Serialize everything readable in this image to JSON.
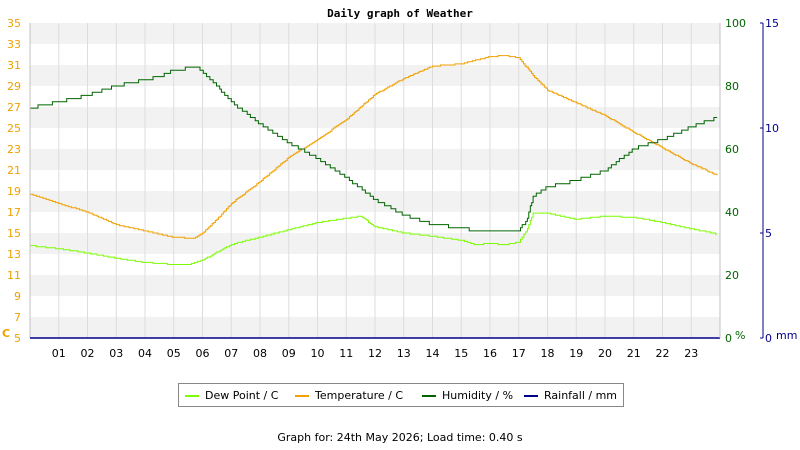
{
  "chart_data": {
    "type": "line",
    "title": "Daily graph of Weather",
    "x_ticks": [
      "01",
      "02",
      "03",
      "04",
      "05",
      "06",
      "07",
      "08",
      "09",
      "10",
      "11",
      "12",
      "13",
      "14",
      "15",
      "16",
      "17",
      "18",
      "19",
      "20",
      "21",
      "22",
      "23"
    ],
    "xlim": [
      0,
      24
    ],
    "axes": {
      "left": {
        "label": "C",
        "ylim": [
          5,
          35
        ],
        "ticks": [
          5,
          7,
          9,
          11,
          13,
          15,
          17,
          19,
          21,
          23,
          25,
          27,
          29,
          31,
          33,
          35
        ],
        "color": "#f0a000"
      },
      "right1": {
        "label": "%",
        "ylim": [
          0,
          100
        ],
        "ticks": [
          0,
          20,
          40,
          60,
          80,
          100
        ],
        "color": "#006400"
      },
      "right2": {
        "label": "mm",
        "ylim": [
          0,
          15
        ],
        "ticks": [
          0,
          5,
          10,
          15
        ],
        "color": "#00008b"
      }
    },
    "grid": true,
    "legend_position": "bottom",
    "series": [
      {
        "name": "Dew Point / C",
        "axis": "left",
        "color": "#7cfc00",
        "x": [
          0,
          1,
          2,
          3,
          4,
          5,
          5.5,
          6,
          7,
          8,
          9,
          10,
          11,
          11.5,
          12,
          13,
          14,
          15,
          15.5,
          16,
          16.5,
          17,
          17.3,
          17.5,
          18,
          19,
          20,
          21,
          22,
          23,
          23.9
        ],
        "y": [
          13.8,
          13.5,
          13.1,
          12.6,
          12.2,
          12.0,
          12.0,
          12.4,
          13.9,
          14.6,
          15.3,
          16.0,
          16.4,
          16.6,
          15.6,
          15.0,
          14.7,
          14.3,
          13.9,
          14.0,
          13.9,
          14.1,
          15.4,
          16.9,
          16.9,
          16.3,
          16.6,
          16.5,
          16.0,
          15.4,
          14.9
        ]
      },
      {
        "name": "Temperature / C",
        "axis": "left",
        "color": "#f0a000",
        "x": [
          0,
          1,
          2,
          3,
          4,
          5,
          5.7,
          6,
          6.5,
          7,
          8,
          9,
          10,
          11,
          12,
          13,
          14,
          15,
          16,
          16.5,
          17,
          17.5,
          18,
          19,
          20,
          21,
          22,
          23,
          23.9
        ],
        "y": [
          18.7,
          17.8,
          17.0,
          15.8,
          15.2,
          14.6,
          14.5,
          15.0,
          16.3,
          17.8,
          19.9,
          22.2,
          23.9,
          25.8,
          28.2,
          29.7,
          30.9,
          31.1,
          31.8,
          31.9,
          31.7,
          30.0,
          28.6,
          27.4,
          26.2,
          24.6,
          23.1,
          21.6,
          20.5
        ]
      },
      {
        "name": "Humidity / %",
        "axis": "right1",
        "color": "#006400",
        "x": [
          0,
          1,
          2,
          3,
          4,
          4.5,
          5,
          5.8,
          6.2,
          7,
          8,
          9,
          10,
          11,
          12,
          13,
          14,
          15,
          15.5,
          16,
          16.5,
          17,
          17.3,
          17.5,
          18,
          19,
          20,
          21,
          22,
          23,
          23.9
        ],
        "y": [
          73,
          75,
          77,
          80,
          82,
          83,
          85,
          86,
          83,
          75,
          68,
          62,
          57,
          51,
          44,
          39,
          36,
          35,
          34,
          34,
          34,
          34,
          38,
          45,
          48,
          50,
          53,
          60,
          63,
          67,
          70
        ]
      },
      {
        "name": "Rainfall / mm",
        "axis": "right2",
        "color": "#00008b",
        "x": [
          0,
          24
        ],
        "y": [
          0,
          0
        ]
      }
    ]
  },
  "footer": {
    "text": "Graph for: 24th May 2026; Load time: 0.40 s"
  }
}
